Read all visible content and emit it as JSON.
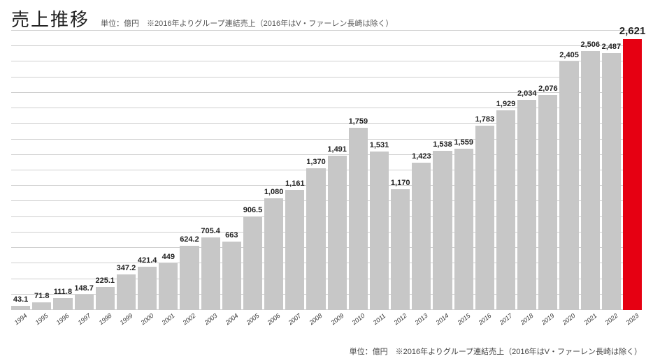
{
  "header": {
    "title": "売上推移",
    "subtitle": "単位：億円　※2016年よりグループ連結売上（2016年はV・ファーレン長崎は除く）"
  },
  "footer": {
    "note": "単位：億円　※2016年よりグループ連結売上（2016年はV・ファーレン長崎は除く）"
  },
  "chart": {
    "type": "bar",
    "ylim": [
      0,
      2700
    ],
    "ytick_step": 150,
    "grid_color": "#cfcfcf",
    "background_color": "#ffffff",
    "bar_color_default": "#c7c7c7",
    "bar_color_highlight": "#e60012",
    "label_fontsize": 11,
    "highlight_label_fontsize": 15,
    "title_fontsize": 26,
    "x_label_fontsize": 9,
    "years": [
      "1994",
      "1995",
      "1996",
      "1997",
      "1998",
      "1999",
      "2000",
      "2001",
      "2002",
      "2003",
      "2004",
      "2005",
      "2006",
      "2007",
      "2008",
      "2009",
      "2010",
      "2011",
      "2012",
      "2013",
      "2014",
      "2015",
      "2016",
      "2017",
      "2018",
      "2019",
      "2020",
      "2021",
      "2022",
      "2023"
    ],
    "values": [
      43.1,
      71.8,
      111.8,
      148.7,
      225.1,
      347.2,
      421.4,
      449,
      624.2,
      705.4,
      663,
      906.5,
      1080,
      1161,
      1370,
      1491,
      1759,
      1531,
      1170,
      1423,
      1538,
      1559,
      1783,
      1929,
      2034,
      2076,
      2405,
      2506,
      2487,
      2621
    ],
    "display_labels": [
      "43.1",
      "71.8",
      "111.8",
      "148.7",
      "225.1",
      "347.2",
      "421.4",
      "449",
      "624.2",
      "705.4",
      "663",
      "906.5",
      "1,080",
      "1,161",
      "1,370",
      "1,491",
      "1,759",
      "1,531",
      "1,170",
      "1,423",
      "1,538",
      "1,559",
      "1,783",
      "1,929",
      "2,034",
      "2,076",
      "2,405",
      "2,506",
      "2,487",
      "2,621"
    ],
    "highlight_index": 29
  }
}
